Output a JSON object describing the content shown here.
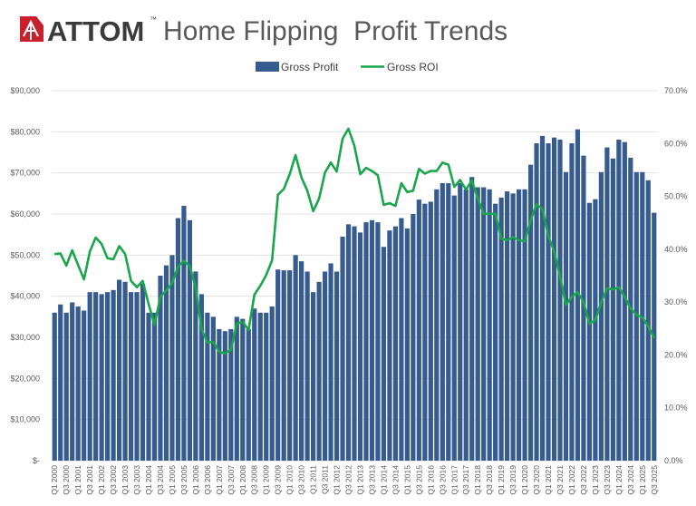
{
  "logo": {
    "text": "ATTOM",
    "trademark": "™",
    "color": "#c8202f"
  },
  "chart_data": {
    "type": "bar+line",
    "title": "Home Flipping  Profit Trends",
    "legend_position": "top",
    "grid": true,
    "x_tick_labels": [
      "Q1 2000",
      "Q3 2000",
      "Q1 2001",
      "Q3 2001",
      "Q1 2002",
      "Q3 2002",
      "Q1 2003",
      "Q3 2003",
      "Q1 2004",
      "Q3 2004",
      "Q1 2005",
      "Q3 2005",
      "Q1 2006",
      "Q3 2006",
      "Q1 2007",
      "Q3 2007",
      "Q1 2008",
      "Q3 2008",
      "Q1 2009",
      "Q3 2009",
      "Q1 2010",
      "Q3 2010",
      "Q1 2011",
      "Q3 2011",
      "Q1 2012",
      "Q3 2012",
      "Q1 2013",
      "Q3 2013",
      "Q1 2014",
      "Q3 2014",
      "Q1 2015",
      "Q3 2015",
      "Q1 2016",
      "Q3 2016",
      "Q1 2017",
      "Q3 2017",
      "Q1 2018",
      "Q3 2018",
      "Q1 2019",
      "Q3 2019",
      "Q1 2020",
      "Q3 2020",
      "Q1 2021",
      "Q3 2021",
      "Q1 2022",
      "Q3 2022",
      "Q1 2023",
      "Q3 2023",
      "Q1 2024",
      "Q3 2024",
      "Q1 2025",
      "Q3 2025"
    ],
    "y_left": {
      "ylim": [
        0,
        90000
      ],
      "tick_labels": [
        "$-",
        "$10,000",
        "$20,000",
        "$30,000",
        "$40,000",
        "$50,000",
        "$60,000",
        "$70,000",
        "$80,000",
        "$90,000"
      ]
    },
    "y_right": {
      "ylim": [
        0,
        70
      ],
      "tick_labels": [
        "0.0%",
        "10.0%",
        "20.0%",
        "30.0%",
        "40.0%",
        "50.0%",
        "60.0%",
        "70.0%"
      ]
    },
    "series": [
      {
        "name": "Gross Profit",
        "type": "bar",
        "axis": "left",
        "color": "#355b8f",
        "values": [
          36000,
          38000,
          36000,
          38500,
          37500,
          36500,
          41000,
          41000,
          40500,
          41000,
          41500,
          44000,
          43500,
          41000,
          41000,
          43000,
          36000,
          36000,
          45000,
          47500,
          50000,
          59000,
          62000,
          58500,
          46000,
          40500,
          36000,
          35000,
          32000,
          31500,
          32000,
          35000,
          34500,
          32000,
          37000,
          36000,
          36000,
          37500,
          46500,
          46300,
          46300,
          50000,
          48500,
          46000,
          41000,
          43500,
          46000,
          48000,
          46000,
          54500,
          57500,
          57000,
          55500,
          58000,
          58500,
          58000,
          52000,
          56000,
          57000,
          59000,
          56500,
          60000,
          63500,
          62500,
          63000,
          66000,
          67500,
          67500,
          64500,
          67500,
          66000,
          69000,
          66500,
          66500,
          66000,
          62500,
          64000,
          65500,
          65000,
          66000,
          66000,
          72000,
          77200,
          79000,
          77200,
          78600,
          78100,
          70200,
          77200,
          80600,
          74200,
          62700,
          63600,
          70200,
          76200,
          73500,
          78100,
          77500,
          73700,
          70200,
          70200,
          68200,
          60300
        ]
      },
      {
        "name": "Gross ROI",
        "type": "line",
        "axis": "right",
        "color": "#1aa64a",
        "values": [
          39.1,
          39.2,
          36.9,
          39.8,
          37.0,
          34.3,
          39.6,
          42.2,
          41.0,
          38.3,
          38.1,
          40.6,
          39.1,
          34.0,
          32.8,
          34.0,
          29.6,
          25.7,
          31.0,
          32.2,
          33.6,
          36.7,
          37.8,
          36.8,
          32.8,
          24.9,
          22.3,
          22.5,
          20.6,
          20.3,
          21.0,
          25.9,
          26.3,
          24.7,
          31.4,
          33.1,
          35.1,
          37.9,
          50.3,
          51.4,
          54.2,
          57.8,
          53.6,
          51.1,
          47.2,
          49.6,
          54.5,
          56.4,
          54.7,
          60.9,
          62.8,
          59.6,
          54.2,
          55.4,
          54.8,
          54.0,
          48.4,
          48.7,
          48.2,
          52.5,
          50.8,
          51.1,
          55.2,
          54.3,
          54.8,
          54.8,
          56.4,
          56.0,
          51.8,
          53.1,
          51.3,
          53.0,
          49.6,
          46.7,
          46.7,
          46.7,
          42.0,
          41.7,
          42.3,
          41.7,
          41.5,
          45.5,
          48.5,
          47.7,
          42.5,
          39.6,
          34.8,
          29.5,
          31.0,
          31.9,
          30.0,
          25.9,
          26.6,
          30.0,
          32.6,
          32.4,
          32.8,
          31.0,
          28.8,
          27.6,
          27.1,
          25.4,
          23.2
        ]
      }
    ]
  }
}
